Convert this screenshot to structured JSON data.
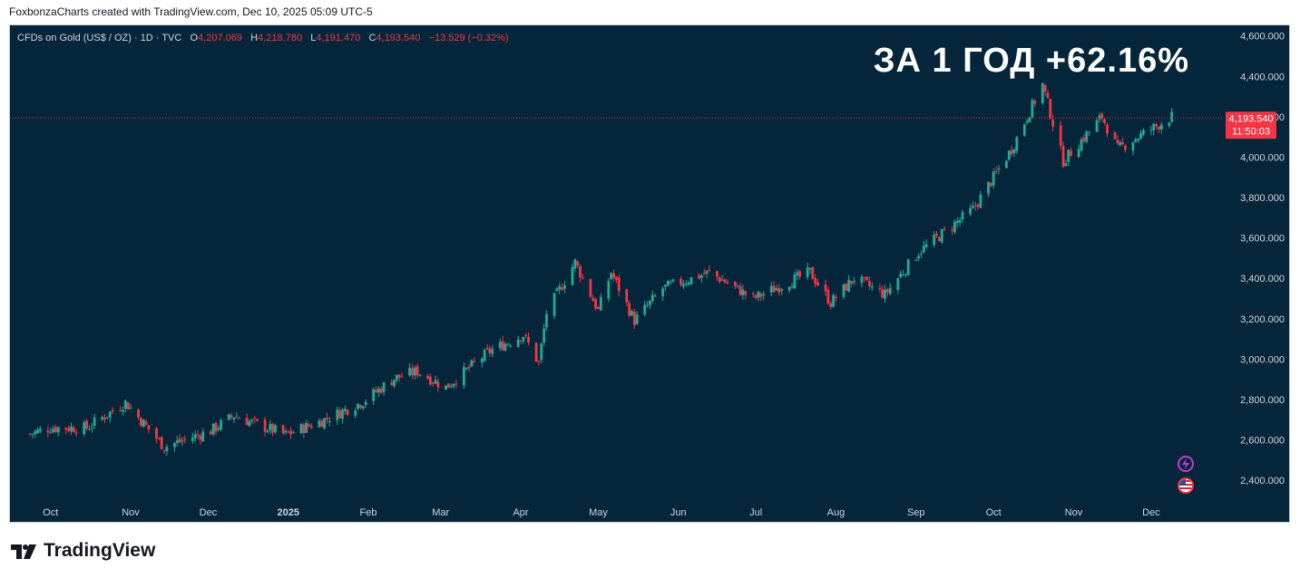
{
  "credit": "FoxbonzaCharts created with TradingView.com, Dec 10, 2025 05:09 UTC-5",
  "header": {
    "symbol": "CFDs on Gold (US$ / OZ) · 1D · TVC",
    "o_label": "O",
    "o_value": "4,207.069",
    "h_label": "H",
    "h_value": "4,218.780",
    "l_label": "L",
    "l_value": "4,191.470",
    "c_label": "C",
    "c_value": "4,193.540",
    "change": "−13.529 (−0.32%)"
  },
  "headline": "ЗА 1 ГОД +62.16%",
  "price_tag": {
    "price": "4,193.540",
    "countdown": "11:50:03"
  },
  "brand": "TradingView",
  "colors": {
    "up": "#22ab94",
    "down": "#f23645",
    "background": "#05263a",
    "axis_text": "#d1d4dc"
  },
  "icons": [
    "lightning-icon",
    "us-flag-icon",
    "tradingview-logo-icon"
  ],
  "chart_data": {
    "type": "line",
    "title": "",
    "xlabel": "",
    "ylabel": "",
    "ylim": [
      2320,
      4630
    ],
    "y_ticks": [
      "4,600.000",
      "4,400.000",
      "4,200.000",
      "4,000.000",
      "3,800.000",
      "3,600.000",
      "3,400.000",
      "3,200.000",
      "3,000.000",
      "2,800.000",
      "2,600.000",
      "2,400.000"
    ],
    "x_ticks": [
      "Oct",
      "Nov",
      "Dec",
      "2025",
      "Feb",
      "Mar",
      "Apr",
      "May",
      "Jun",
      "Jul",
      "Aug",
      "Sep",
      "Oct",
      "Nov",
      "Dec"
    ],
    "last_price": 4193.54,
    "series": [
      {
        "x": [
          "2024-09-23",
          "2024-10-01",
          "2024-10-15",
          "2024-10-30",
          "2024-11-14",
          "2024-12-02",
          "2024-12-11",
          "2024-12-31",
          "2025-01-15",
          "2025-01-30",
          "2025-02-11",
          "2025-02-20",
          "2025-03-03",
          "2025-03-20",
          "2025-04-02",
          "2025-04-08",
          "2025-04-11",
          "2025-04-22",
          "2025-05-01",
          "2025-05-06",
          "2025-05-15",
          "2025-05-26",
          "2025-06-13",
          "2025-06-30",
          "2025-07-22",
          "2025-07-30",
          "2025-08-08",
          "2025-08-20",
          "2025-09-02",
          "2025-09-23",
          "2025-10-08",
          "2025-10-20",
          "2025-10-28",
          "2025-11-12",
          "2025-11-18",
          "2025-12-09"
        ],
        "y": [
          2630,
          2660,
          2660,
          2785,
          2565,
          2645,
          2720,
          2625,
          2700,
          2790,
          2905,
          2940,
          2860,
          3040,
          3120,
          2980,
          3230,
          3480,
          3240,
          3430,
          3190,
          3350,
          3430,
          3300,
          3430,
          3280,
          3400,
          3320,
          3530,
          3740,
          4040,
          4360,
          3980,
          4200,
          4040,
          4200
        ]
      }
    ]
  }
}
